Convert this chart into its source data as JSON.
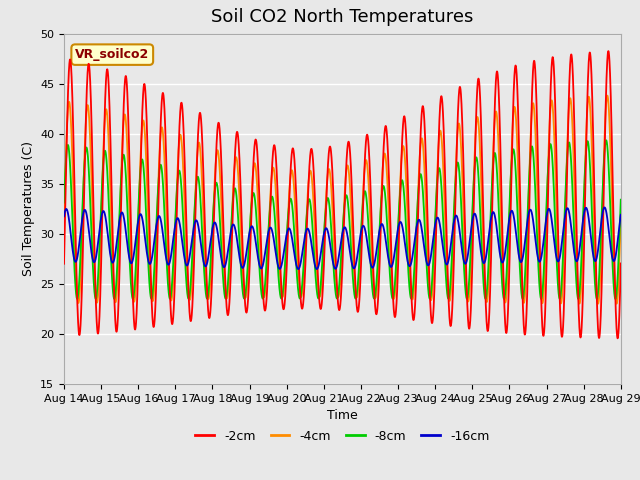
{
  "title": "Soil CO2 North Temperatures",
  "xlabel": "Time",
  "ylabel": "Soil Temperatures (C)",
  "ylim": [
    15,
    50
  ],
  "xlim": [
    0,
    15
  ],
  "x_tick_labels": [
    "Aug 14",
    "Aug 15",
    "Aug 16",
    "Aug 17",
    "Aug 18",
    "Aug 19",
    "Aug 20",
    "Aug 21",
    "Aug 22",
    "Aug 23",
    "Aug 24",
    "Aug 25",
    "Aug 26",
    "Aug 27",
    "Aug 28",
    "Aug 29"
  ],
  "annotation_text": "VR_soilco2",
  "annotation_box_facecolor": "#FFFFCC",
  "annotation_box_edgecolor": "#CC8800",
  "annotation_text_color": "#8B0000",
  "colors": {
    "-2cm": "#FF0000",
    "-4cm": "#FF8C00",
    "-8cm": "#00CC00",
    "-16cm": "#0000CC"
  },
  "legend_labels": [
    "-2cm",
    "-4cm",
    "-8cm",
    "-16cm"
  ],
  "fig_facecolor": "#E8E8E8",
  "plot_bg_color": "#E8E8E8",
  "grid_color": "#FFFFFF",
  "title_fontsize": 13,
  "label_fontsize": 9,
  "tick_fontsize": 8,
  "linewidth": 1.3
}
